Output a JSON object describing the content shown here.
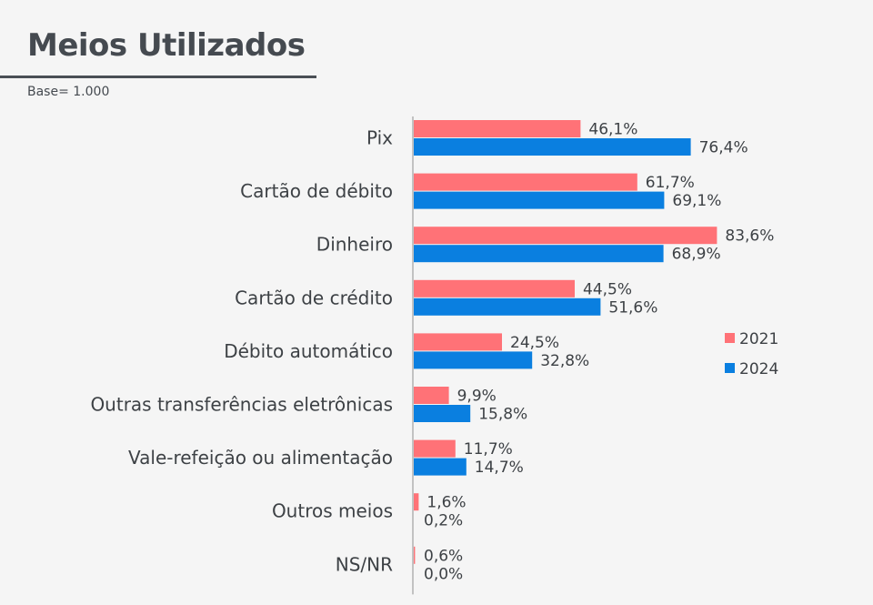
{
  "header": {
    "title": "Meios Utilizados",
    "base": "Base= 1.000"
  },
  "chart_data": {
    "type": "bar",
    "orientation": "horizontal",
    "title": "Meios Utilizados",
    "subtitle": "Base= 1.000",
    "xlabel": "",
    "ylabel": "",
    "xlim": [
      0,
      100
    ],
    "grid": false,
    "legend_position": "right",
    "categories": [
      "Pix",
      "Cartão de débito",
      "Dinheiro",
      "Cartão de crédito",
      "Débito automático",
      "Outras transferências eletrônicas",
      "Vale-refeição ou alimentação",
      "Outros meios",
      "NS/NR"
    ],
    "series": [
      {
        "name": "2021",
        "color": "#ff7277",
        "values": [
          46.1,
          61.7,
          83.6,
          44.5,
          24.5,
          9.9,
          11.7,
          1.6,
          0.6
        ],
        "labels": [
          "46,1%",
          "61,7%",
          "83,6%",
          "44,5%",
          "24,5%",
          "9,9%",
          "11,7%",
          "1,6%",
          "0,6%"
        ]
      },
      {
        "name": "2024",
        "color": "#0a7fe0",
        "values": [
          76.4,
          69.1,
          68.9,
          51.6,
          32.8,
          15.8,
          14.7,
          0.2,
          0.0
        ],
        "labels": [
          "76,4%",
          "69,1%",
          "68,9%",
          "51,6%",
          "32,8%",
          "15,8%",
          "14,7%",
          "0,2%",
          "0,0%"
        ]
      }
    ]
  }
}
